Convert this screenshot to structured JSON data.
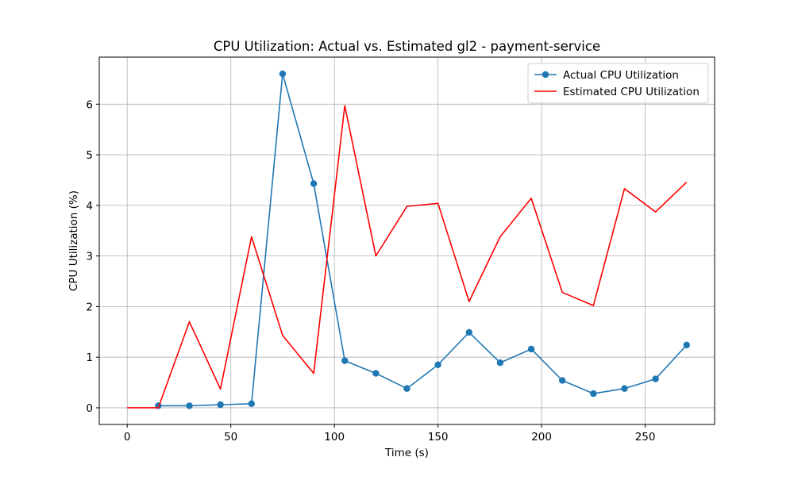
{
  "chart_data": {
    "type": "line",
    "title": "CPU Utilization: Actual vs. Estimated gl2 - payment-service",
    "xlabel": "Time (s)",
    "ylabel": "CPU Utilization (%)",
    "xlim": [
      -13.5,
      283.5
    ],
    "ylim": [
      -0.33,
      6.93
    ],
    "xticks": [
      0,
      50,
      100,
      150,
      200,
      250
    ],
    "yticks": [
      0,
      1,
      2,
      3,
      4,
      5,
      6
    ],
    "grid": true,
    "legend_position": "top-right",
    "series": [
      {
        "name": "Actual CPU Utilization",
        "color": "#1f77b4",
        "marker": "circle",
        "x": [
          15,
          30,
          45,
          60,
          75,
          90,
          105,
          120,
          135,
          150,
          165,
          180,
          195,
          210,
          225,
          240,
          255,
          270
        ],
        "values": [
          0.04,
          0.04,
          0.06,
          0.08,
          6.6,
          4.43,
          0.93,
          0.68,
          0.38,
          0.85,
          1.49,
          0.89,
          1.16,
          0.54,
          0.28,
          0.38,
          0.57,
          1.24
        ]
      },
      {
        "name": "Estimated CPU Utilization",
        "color": "#ff0000",
        "marker": "none",
        "x": [
          0,
          15,
          30,
          45,
          60,
          75,
          90,
          105,
          120,
          135,
          150,
          165,
          180,
          195,
          210,
          225,
          240,
          255,
          270
        ],
        "values": [
          0.0,
          0.0,
          1.7,
          0.37,
          3.38,
          1.43,
          0.68,
          5.97,
          3.0,
          3.98,
          4.04,
          2.1,
          3.38,
          4.14,
          2.28,
          2.02,
          4.33,
          3.87,
          4.46
        ]
      }
    ]
  }
}
